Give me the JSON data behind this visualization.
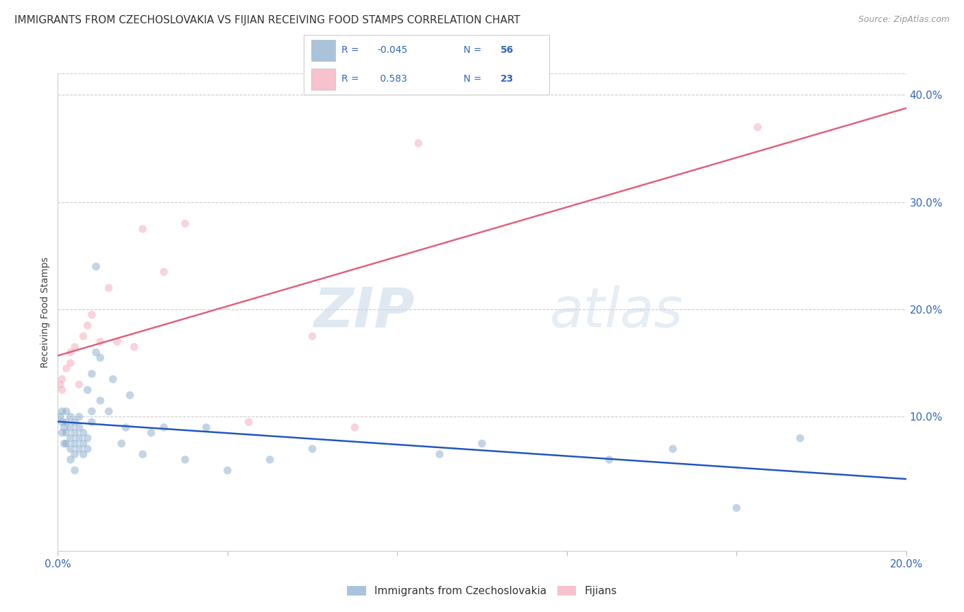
{
  "title": "IMMIGRANTS FROM CZECHOSLOVAKIA VS FIJIAN RECEIVING FOOD STAMPS CORRELATION CHART",
  "source": "Source: ZipAtlas.com",
  "ylabel": "Receiving Food Stamps",
  "xlim": [
    0.0,
    0.2
  ],
  "ylim": [
    -0.025,
    0.42
  ],
  "blue_R": -0.045,
  "blue_N": 56,
  "pink_R": 0.583,
  "pink_N": 23,
  "blue_color": "#87AACC",
  "pink_color": "#F4A8B8",
  "blue_line_color": "#2255BB",
  "pink_line_color": "#E06080",
  "scatter_alpha": 0.5,
  "scatter_size": 70,
  "blue_x": [
    0.0005,
    0.001,
    0.001,
    0.001,
    0.0015,
    0.0015,
    0.002,
    0.002,
    0.002,
    0.002,
    0.003,
    0.003,
    0.003,
    0.003,
    0.003,
    0.004,
    0.004,
    0.004,
    0.004,
    0.004,
    0.005,
    0.005,
    0.005,
    0.005,
    0.006,
    0.006,
    0.006,
    0.007,
    0.007,
    0.007,
    0.008,
    0.008,
    0.008,
    0.009,
    0.009,
    0.01,
    0.01,
    0.012,
    0.013,
    0.015,
    0.016,
    0.017,
    0.02,
    0.022,
    0.025,
    0.03,
    0.035,
    0.04,
    0.05,
    0.06,
    0.09,
    0.1,
    0.13,
    0.145,
    0.16,
    0.175
  ],
  "blue_y": [
    0.1,
    0.085,
    0.095,
    0.105,
    0.075,
    0.09,
    0.075,
    0.085,
    0.095,
    0.105,
    0.06,
    0.07,
    0.08,
    0.09,
    0.1,
    0.05,
    0.065,
    0.075,
    0.085,
    0.095,
    0.07,
    0.08,
    0.09,
    0.1,
    0.065,
    0.075,
    0.085,
    0.07,
    0.08,
    0.125,
    0.095,
    0.105,
    0.14,
    0.16,
    0.24,
    0.115,
    0.155,
    0.105,
    0.135,
    0.075,
    0.09,
    0.12,
    0.065,
    0.085,
    0.09,
    0.06,
    0.09,
    0.05,
    0.06,
    0.07,
    0.065,
    0.075,
    0.06,
    0.07,
    0.015,
    0.08
  ],
  "pink_x": [
    0.0005,
    0.001,
    0.001,
    0.002,
    0.003,
    0.003,
    0.004,
    0.005,
    0.006,
    0.007,
    0.008,
    0.01,
    0.012,
    0.014,
    0.018,
    0.02,
    0.025,
    0.03,
    0.045,
    0.06,
    0.07,
    0.085,
    0.165
  ],
  "pink_y": [
    0.13,
    0.125,
    0.135,
    0.145,
    0.15,
    0.16,
    0.165,
    0.13,
    0.175,
    0.185,
    0.195,
    0.17,
    0.22,
    0.17,
    0.165,
    0.275,
    0.235,
    0.28,
    0.095,
    0.175,
    0.09,
    0.355,
    0.37
  ],
  "watermark_zip": "ZIP",
  "watermark_atlas": "atlas",
  "legend_blue_label": "Immigrants from Czechoslovakia",
  "legend_pink_label": "Fijians",
  "background_color": "#FFFFFF",
  "grid_color": "#CCCCCC",
  "tick_color": "#3366BB",
  "title_fontsize": 11,
  "axis_label_fontsize": 10,
  "tick_fontsize": 11,
  "ytick_positions": [
    0.1,
    0.2,
    0.3,
    0.4
  ],
  "ytick_labels": [
    "10.0%",
    "20.0%",
    "30.0%",
    "40.0%"
  ],
  "xtick_positions": [
    0.0,
    0.04,
    0.08,
    0.12,
    0.16,
    0.2
  ],
  "xtick_labels": [
    "0.0%",
    "",
    "",
    "",
    "",
    "20.0%"
  ]
}
